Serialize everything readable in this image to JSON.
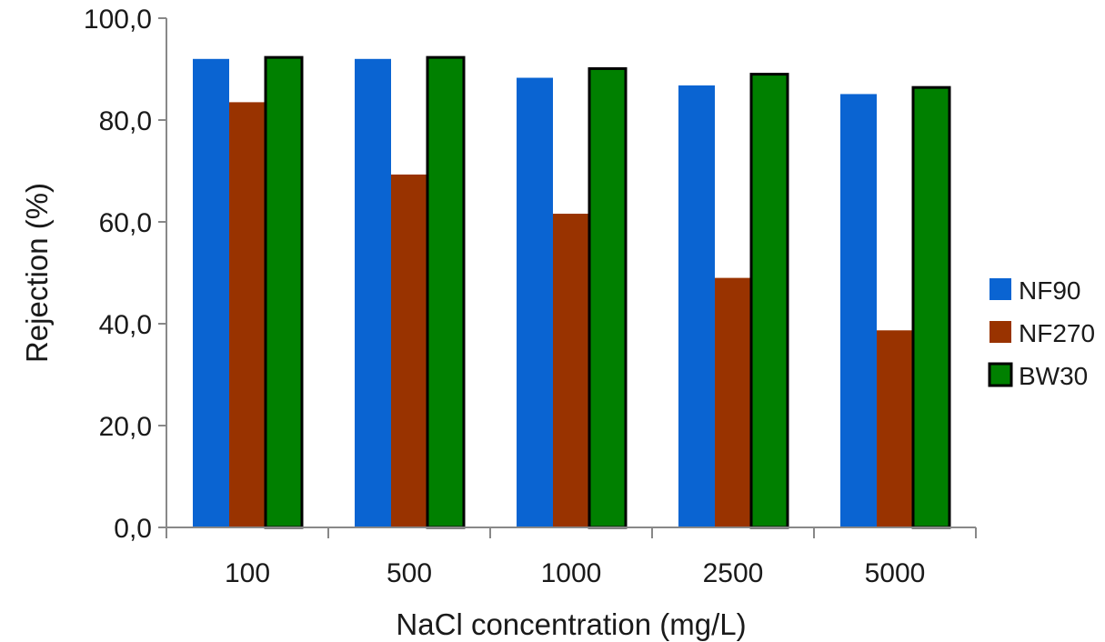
{
  "chart_data": {
    "type": "bar",
    "categories": [
      "100",
      "500",
      "1000",
      "2500",
      "5000"
    ],
    "series": [
      {
        "name": "NF90",
        "values": [
          92.0,
          92.0,
          88.3,
          86.8,
          85.1
        ],
        "color": "#0a64d2",
        "outlined": false
      },
      {
        "name": "NF270",
        "values": [
          83.5,
          69.3,
          61.6,
          49.0,
          38.7
        ],
        "color": "#993300",
        "outlined": false
      },
      {
        "name": "BW30",
        "values": [
          92.3,
          92.3,
          90.1,
          89.0,
          86.4
        ],
        "color": "#008000",
        "outlined": true
      }
    ],
    "xlabel": "NaCl concentration (mg/L)",
    "ylabel": "Rejection (%)",
    "ylim": [
      0,
      100
    ],
    "yticks": [
      "0,0",
      "20,0",
      "40,0",
      "60,0",
      "80,0",
      "100,0"
    ],
    "grid": false,
    "legend_position": "right"
  }
}
